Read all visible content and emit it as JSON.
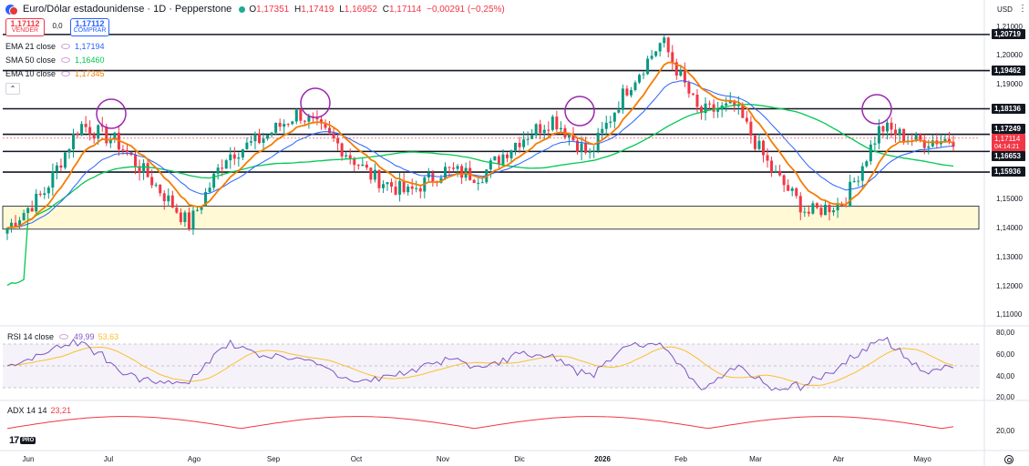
{
  "header": {
    "title": "Euro/Dólar estadounidense · 1D · Pepperstone",
    "ohlc": [
      {
        "k": "O",
        "v": "1,17351"
      },
      {
        "k": "H",
        "v": "1,17419"
      },
      {
        "k": "L",
        "v": "1,16952"
      },
      {
        "k": "C",
        "v": "1,17114"
      },
      {
        "k": "",
        "v": "−0,00291 (−0,25%)"
      }
    ]
  },
  "trade": {
    "sell_price": "1,17112",
    "sell_label": "VENDER",
    "spread": "0,0",
    "buy_price": "1,17112",
    "buy_label": "COMPRAR"
  },
  "indicators": [
    {
      "name": "EMA 21 close",
      "value": "1,17194",
      "color": "#2962ff"
    },
    {
      "name": "SMA 50 close",
      "value": "1,16460",
      "color": "#00c853"
    },
    {
      "name": "EMA 10 close",
      "value": "1,17345",
      "color": "#f57c00"
    }
  ],
  "collapse_icon": "chevron-up-icon",
  "rsi": {
    "name": "RSI 14 close",
    "value": "49,99",
    "ma_value": "53,63",
    "color": "#7e57c2",
    "ma_color": "#fbc02d"
  },
  "adx": {
    "name": "ADX 14 14",
    "value": "23,21",
    "color": "#f23645"
  },
  "price_axis": {
    "currency": "USD",
    "ticks": [
      "1,21000",
      "1,20000",
      "1,19000",
      "1,18000",
      "1,17000",
      "1,16000",
      "1,15000",
      "1,14000",
      "1,13000",
      "1,12000",
      "1,11000"
    ],
    "levels": [
      "1,20719",
      "1,19462",
      "1,18136",
      "1,17249",
      "1,16653",
      "1,15936"
    ],
    "current_price": "1,17114",
    "countdown": "04:14:21",
    "rsi_ticks": [
      "80,00",
      "60,00",
      "40,00",
      "20,00"
    ],
    "adx_ticks": [
      "20,00"
    ]
  },
  "time_axis": [
    {
      "label": "Jun",
      "year": false
    },
    {
      "label": "Jul",
      "year": false
    },
    {
      "label": "Ago",
      "year": false
    },
    {
      "label": "Sep",
      "year": false
    },
    {
      "label": "Oct",
      "year": false
    },
    {
      "label": "Nov",
      "year": false
    },
    {
      "label": "Dic",
      "year": false
    },
    {
      "label": "2026",
      "year": true
    },
    {
      "label": "Feb",
      "year": false
    },
    {
      "label": "Mar",
      "year": false
    },
    {
      "label": "Abr",
      "year": false
    },
    {
      "label": "Mayo",
      "year": false
    }
  ],
  "logo": {
    "mark": "17",
    "badge": "PRO"
  },
  "colors": {
    "up": "#089981",
    "down": "#f23645",
    "ema21": "#2962ff",
    "sma50": "#00c853",
    "ema10": "#f57c00",
    "circle": "#9c27b0",
    "zone": "#fff9d6"
  },
  "chart_data": {
    "type": "candlestick",
    "title": "Euro/Dólar estadounidense · 1D · Pepperstone",
    "ylim": [
      1.105,
      1.213
    ],
    "support_resistance": [
      1.20719,
      1.19462,
      1.18136,
      1.17249,
      1.16653,
      1.15936
    ],
    "demand_zone": [
      1.1395,
      1.1475
    ],
    "anchor_points": [
      {
        "x": "Jun",
        "y": 1.14
      },
      {
        "x": "Jun",
        "y": 1.152
      },
      {
        "x": "Jul",
        "y": 1.176
      },
      {
        "x": "Jul",
        "y": 1.17
      },
      {
        "x": "Ago",
        "y": 1.156
      },
      {
        "x": "Ago",
        "y": 1.141
      },
      {
        "x": "Ago",
        "y": 1.165
      },
      {
        "x": "Sep",
        "y": 1.171
      },
      {
        "x": "Sep",
        "y": 1.18
      },
      {
        "x": "Oct",
        "y": 1.17
      },
      {
        "x": "Oct",
        "y": 1.158
      },
      {
        "x": "Nov",
        "y": 1.152
      },
      {
        "x": "Nov",
        "y": 1.16
      },
      {
        "x": "Dic",
        "y": 1.158
      },
      {
        "x": "Dic",
        "y": 1.17
      },
      {
        "x": "Dic",
        "y": 1.178
      },
      {
        "x": "2026",
        "y": 1.165
      },
      {
        "x": "2026",
        "y": 1.188
      },
      {
        "x": "Feb",
        "y": 1.205
      },
      {
        "x": "Feb",
        "y": 1.18
      },
      {
        "x": "Feb",
        "y": 1.182
      },
      {
        "x": "Mar",
        "y": 1.16
      },
      {
        "x": "Mar",
        "y": 1.145
      },
      {
        "x": "Abr",
        "y": 1.149
      },
      {
        "x": "Abr",
        "y": 1.175
      },
      {
        "x": "Mayo",
        "y": 1.17
      },
      {
        "x": "Mayo",
        "y": 1.171
      }
    ]
  }
}
